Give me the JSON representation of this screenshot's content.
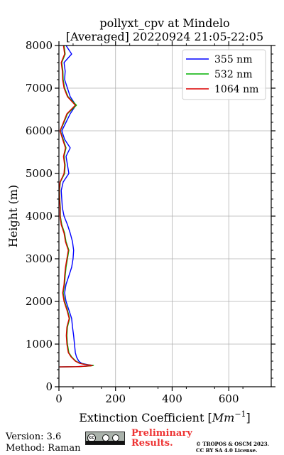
{
  "chart_data": {
    "type": "line",
    "title_line1": "pollyxt_cpv at Mindelo",
    "title_line2": "[Averaged] 20220924 21:05-22:05",
    "xlabel_prefix": "Extinction Coefficient [",
    "xlabel_unit": "Mm",
    "xlabel_exp": "−1",
    "xlabel_suffix": "]",
    "ylabel": "Height (m)",
    "xlim": [
      0,
      750
    ],
    "ylim": [
      0,
      8000
    ],
    "xticks": [
      0,
      200,
      400,
      600
    ],
    "yticks": [
      0,
      1000,
      2000,
      3000,
      4000,
      5000,
      6000,
      7000,
      8000
    ],
    "xticklabels": [
      "0",
      "200",
      "400",
      "600"
    ],
    "yticklabels": [
      "0",
      "1000",
      "2000",
      "3000",
      "4000",
      "5000",
      "6000",
      "7000",
      "8000"
    ],
    "grid": true,
    "legend_position": "top-right",
    "series": [
      {
        "name": "355 nm",
        "color": "#0000ff",
        "points": [
          [
            2,
            465
          ],
          [
            60,
            470
          ],
          [
            110,
            490
          ],
          [
            120,
            500
          ],
          [
            100,
            520
          ],
          [
            80,
            550
          ],
          [
            70,
            600
          ],
          [
            62,
            700
          ],
          [
            58,
            800
          ],
          [
            55,
            1000
          ],
          [
            52,
            1200
          ],
          [
            48,
            1400
          ],
          [
            45,
            1600
          ],
          [
            35,
            1800
          ],
          [
            25,
            2000
          ],
          [
            20,
            2200
          ],
          [
            25,
            2400
          ],
          [
            35,
            2600
          ],
          [
            45,
            2800
          ],
          [
            50,
            3000
          ],
          [
            52,
            3200
          ],
          [
            48,
            3400
          ],
          [
            40,
            3600
          ],
          [
            30,
            3800
          ],
          [
            18,
            4000
          ],
          [
            12,
            4200
          ],
          [
            10,
            4400
          ],
          [
            8,
            4600
          ],
          [
            15,
            4800
          ],
          [
            35,
            5000
          ],
          [
            30,
            5200
          ],
          [
            25,
            5400
          ],
          [
            40,
            5600
          ],
          [
            20,
            5800
          ],
          [
            10,
            6000
          ],
          [
            25,
            6200
          ],
          [
            40,
            6400
          ],
          [
            60,
            6600
          ],
          [
            40,
            6800
          ],
          [
            30,
            7000
          ],
          [
            20,
            7200
          ],
          [
            22,
            7400
          ],
          [
            18,
            7600
          ],
          [
            45,
            7800
          ],
          [
            25,
            8000
          ]
        ]
      },
      {
        "name": "532 nm",
        "color": "#00b000",
        "points": [
          [
            2,
            465
          ],
          [
            70,
            470
          ],
          [
            115,
            490
          ],
          [
            122,
            500
          ],
          [
            95,
            520
          ],
          [
            75,
            550
          ],
          [
            60,
            600
          ],
          [
            45,
            700
          ],
          [
            35,
            800
          ],
          [
            30,
            1000
          ],
          [
            28,
            1200
          ],
          [
            30,
            1400
          ],
          [
            38,
            1600
          ],
          [
            30,
            1800
          ],
          [
            20,
            2000
          ],
          [
            15,
            2200
          ],
          [
            20,
            2400
          ],
          [
            22,
            2600
          ],
          [
            25,
            2800
          ],
          [
            30,
            3000
          ],
          [
            35,
            3200
          ],
          [
            25,
            3400
          ],
          [
            20,
            3600
          ],
          [
            10,
            3800
          ],
          [
            5,
            4000
          ],
          [
            5,
            4200
          ],
          [
            3,
            4400
          ],
          [
            2,
            4600
          ],
          [
            5,
            4800
          ],
          [
            20,
            5000
          ],
          [
            22,
            5200
          ],
          [
            18,
            5400
          ],
          [
            25,
            5600
          ],
          [
            15,
            5800
          ],
          [
            5,
            6000
          ],
          [
            18,
            6200
          ],
          [
            30,
            6400
          ],
          [
            62,
            6600
          ],
          [
            32,
            6800
          ],
          [
            20,
            7000
          ],
          [
            15,
            7200
          ],
          [
            14,
            7400
          ],
          [
            10,
            7600
          ],
          [
            22,
            7800
          ],
          [
            18,
            8000
          ]
        ]
      },
      {
        "name": "1064 nm",
        "color": "#dd0000",
        "points": [
          [
            2,
            465
          ],
          [
            65,
            470
          ],
          [
            112,
            490
          ],
          [
            118,
            500
          ],
          [
            92,
            520
          ],
          [
            72,
            550
          ],
          [
            58,
            600
          ],
          [
            43,
            700
          ],
          [
            33,
            800
          ],
          [
            28,
            1000
          ],
          [
            26,
            1200
          ],
          [
            28,
            1400
          ],
          [
            36,
            1600
          ],
          [
            28,
            1800
          ],
          [
            18,
            2000
          ],
          [
            13,
            2200
          ],
          [
            18,
            2400
          ],
          [
            20,
            2600
          ],
          [
            23,
            2800
          ],
          [
            28,
            3000
          ],
          [
            33,
            3200
          ],
          [
            23,
            3400
          ],
          [
            18,
            3600
          ],
          [
            8,
            3800
          ],
          [
            4,
            4000
          ],
          [
            4,
            4200
          ],
          [
            2,
            4400
          ],
          [
            1,
            4600
          ],
          [
            4,
            4800
          ],
          [
            18,
            5000
          ],
          [
            20,
            5200
          ],
          [
            16,
            5400
          ],
          [
            23,
            5600
          ],
          [
            13,
            5800
          ],
          [
            4,
            6000
          ],
          [
            16,
            6200
          ],
          [
            28,
            6400
          ],
          [
            58,
            6600
          ],
          [
            30,
            6800
          ],
          [
            18,
            7000
          ],
          [
            13,
            7200
          ],
          [
            12,
            7400
          ],
          [
            8,
            7600
          ],
          [
            20,
            7800
          ],
          [
            16,
            8000
          ]
        ]
      }
    ]
  },
  "footer": {
    "version": "Version: 3.6",
    "method": "Method: Raman",
    "preliminary_line1": "Preliminary",
    "preliminary_line2": "Results.",
    "copyright_line1": "© TROPOS & OSCM 2023.",
    "copyright_line2": "CC BY SA 4.0 License."
  }
}
